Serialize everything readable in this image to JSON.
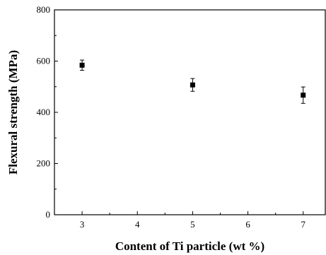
{
  "chart_data": {
    "type": "scatter",
    "title": "",
    "xlabel": "Content of Ti particle (wt %)",
    "ylabel": "Flexural strength (MPa)",
    "xlim": [
      2.5,
      7.4
    ],
    "ylim": [
      0,
      800
    ],
    "x_ticks": [
      3,
      4,
      5,
      6,
      7
    ],
    "y_ticks": [
      0,
      200,
      400,
      600,
      800
    ],
    "grid": false,
    "legend": "none",
    "marker": "square",
    "marker_color": "#000000",
    "points": [
      {
        "x": 3,
        "y": 584,
        "err": 20
      },
      {
        "x": 5,
        "y": 507,
        "err": 25
      },
      {
        "x": 7,
        "y": 467,
        "err": 32
      }
    ]
  }
}
